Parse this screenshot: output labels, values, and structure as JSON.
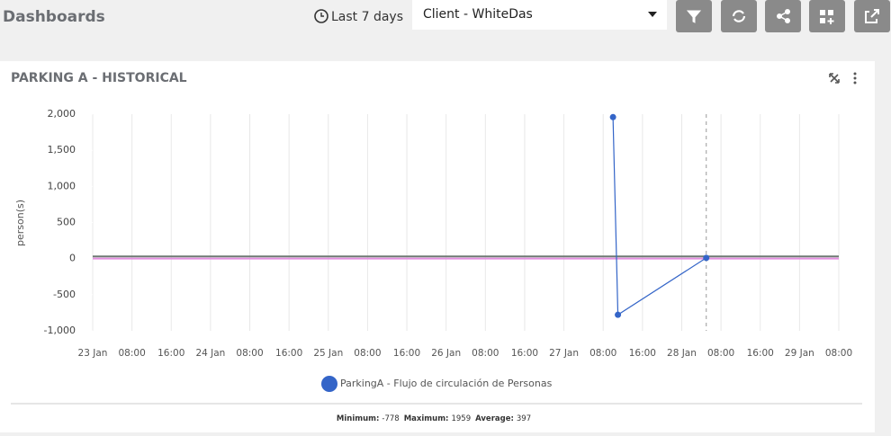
{
  "header": {
    "title": "Dashboards",
    "time_range": "Last 7 days",
    "client_select": "Client - WhiteDas"
  },
  "widget": {
    "title": "PARKING A - HISTORICAL",
    "stats": [
      {
        "label": "Minimum:",
        "value": -778
      },
      {
        "label": "Maximum:",
        "value": 1959
      },
      {
        "label": "Average:",
        "value": 397
      }
    ]
  },
  "chart_data": {
    "type": "line",
    "y_label": "person(s)",
    "x": [
      106,
      107,
      125
    ],
    "series": [
      {
        "name": "ParkingA - Flujo de circulación de Personas",
        "color": "#3465c8",
        "values": [
          1959,
          -778,
          10
        ]
      }
    ],
    "xlim": [
      0,
      152
    ],
    "xticks": [
      {
        "value": 0,
        "label": "23 Jan"
      },
      {
        "value": 8,
        "label": "08:00"
      },
      {
        "value": 16,
        "label": "16:00"
      },
      {
        "value": 24,
        "label": "24 Jan"
      },
      {
        "value": 32,
        "label": "08:00"
      },
      {
        "value": 40,
        "label": "16:00"
      },
      {
        "value": 48,
        "label": "25 Jan"
      },
      {
        "value": 56,
        "label": "08:00"
      },
      {
        "value": 64,
        "label": "16:00"
      },
      {
        "value": 72,
        "label": "26 Jan"
      },
      {
        "value": 80,
        "label": "08:00"
      },
      {
        "value": 88,
        "label": "16:00"
      },
      {
        "value": 96,
        "label": "27 Jan"
      },
      {
        "value": 104,
        "label": "08:00"
      },
      {
        "value": 112,
        "label": "16:00"
      },
      {
        "value": 120,
        "label": "28 Jan"
      },
      {
        "value": 128,
        "label": "08:00"
      },
      {
        "value": 136,
        "label": "16:00"
      },
      {
        "value": 144,
        "label": "29 Jan"
      },
      {
        "value": 152,
        "label": "08:00"
      }
    ],
    "ylim": [
      -1000,
      2000
    ],
    "yticks": [
      {
        "value": -1000,
        "label": "-1,000"
      },
      -500,
      0,
      500,
      {
        "value": 1000,
        "label": "1,000"
      },
      {
        "value": 1500,
        "label": "1,500"
      },
      {
        "value": 2000,
        "label": "2,000"
      }
    ],
    "reference_lines": [
      {
        "value": 30,
        "color": "#6f7a73"
      },
      {
        "value": 0,
        "color": "#e38fe0"
      }
    ],
    "vertical_marker": 125,
    "grid": "x"
  }
}
